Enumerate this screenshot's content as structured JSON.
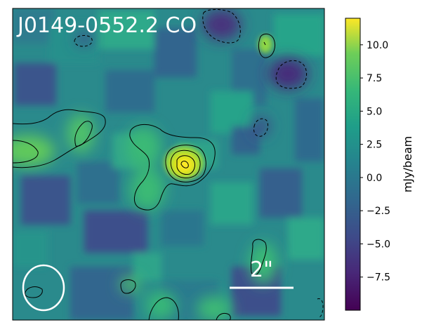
{
  "image": {
    "title": "J0149-0552.2 CO",
    "scale_bar_label": "2\"",
    "colormap": "viridis",
    "colors": {
      "low": "#440154",
      "mid": "#21918c",
      "high": "#fde725",
      "contour": "#000000",
      "overlay": "#ffffff"
    }
  },
  "colorbar": {
    "label": "mJy/beam",
    "vmin": -10.0,
    "vmax": 12.0,
    "ticks": [
      {
        "value": 10.0,
        "label": "10.0"
      },
      {
        "value": 7.5,
        "label": "7.5"
      },
      {
        "value": 5.0,
        "label": "5.0"
      },
      {
        "value": 2.5,
        "label": "2.5"
      },
      {
        "value": 0.0,
        "label": "0.0"
      },
      {
        "value": -2.5,
        "label": "−2.5"
      },
      {
        "value": -5.0,
        "label": "−5.0"
      },
      {
        "value": -7.5,
        "label": "−7.5"
      }
    ]
  }
}
